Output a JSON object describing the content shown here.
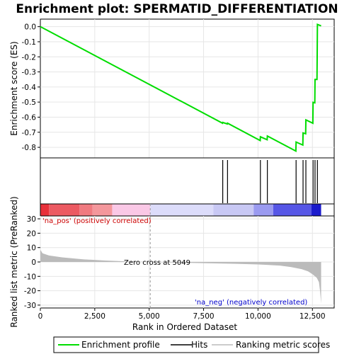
{
  "chart_data": [
    {
      "type": "line",
      "title": "Enrichment plot: SPERMATID_DIFFERENTIATION",
      "ylabel": "Enrichment score (ES)",
      "xlim": [
        0,
        13500
      ],
      "ylim": [
        -0.87,
        0.05
      ],
      "yticks": [
        "0.0",
        "-0.1",
        "-0.2",
        "-0.3",
        "-0.4",
        "-0.5",
        "-0.6",
        "-0.7",
        "-0.8"
      ],
      "ytick_values": [
        0.0,
        -0.1,
        -0.2,
        -0.3,
        -0.4,
        -0.5,
        -0.6,
        -0.7,
        -0.8
      ],
      "grid": true,
      "line_color": "#00dd00",
      "series": [
        {
          "name": "Enrichment profile",
          "x": [
            0,
            8370,
            8380,
            8590,
            8600,
            10100,
            10110,
            10420,
            10430,
            11740,
            11750,
            12060,
            12070,
            12190,
            12200,
            12520,
            12530,
            12610,
            12620,
            12710,
            12720,
            12730,
            12900
          ],
          "values": [
            0.0,
            -0.64,
            -0.635,
            -0.645,
            -0.64,
            -0.755,
            -0.73,
            -0.75,
            -0.725,
            -0.825,
            -0.765,
            -0.785,
            -0.705,
            -0.71,
            -0.618,
            -0.64,
            -0.502,
            -0.505,
            -0.35,
            -0.35,
            -0.18,
            0.015,
            0.005
          ]
        }
      ],
      "hits": [
        8380,
        8600,
        10110,
        10430,
        11750,
        12070,
        12200,
        12530,
        12620,
        12730
      ]
    },
    {
      "type": "area",
      "ylabel": "Ranked list metric (PreRanked)",
      "xlabel": "Rank in Ordered Dataset",
      "xlim": [
        0,
        13500
      ],
      "ylim": [
        -32,
        32
      ],
      "xticks": [
        "0",
        "2,500",
        "5,000",
        "7,500",
        "10,000",
        "12,500"
      ],
      "xtick_values": [
        0,
        2500,
        5000,
        7500,
        10000,
        12500
      ],
      "yticks": [
        "30",
        "20",
        "10",
        "0",
        "-10",
        "-20",
        "-30"
      ],
      "ytick_values": [
        30,
        20,
        10,
        0,
        -10,
        -20,
        -30
      ],
      "fill_color": "#bbbbbb",
      "series": [
        {
          "name": "Ranking metric scores",
          "x": [
            0,
            100,
            400,
            1000,
            2000,
            3000,
            4000,
            5049,
            6000,
            7000,
            8000,
            9000,
            10000,
            11000,
            11500,
            12000,
            12300,
            12500,
            12700,
            12800,
            12850,
            12900
          ],
          "values": [
            8.5,
            6,
            4.5,
            3.2,
            1.8,
            1.0,
            0.4,
            0,
            -0.4,
            -0.7,
            -1.0,
            -1.3,
            -1.7,
            -2.5,
            -3.5,
            -5,
            -6.5,
            -8.5,
            -11,
            -14,
            -20,
            -29
          ]
        }
      ],
      "annotations": {
        "pos": "'na_pos' (positively correlated)",
        "neg": "'na_neg' (negatively correlated)",
        "zero_cross": "Zero cross at 5049"
      },
      "zero_cross": 5049,
      "pos_color": "#cc0000",
      "neg_color": "#0000cc"
    }
  ],
  "legend": {
    "items": [
      {
        "label": "Enrichment profile",
        "color": "#00dd00"
      },
      {
        "label": "Hits",
        "color": "#000000"
      },
      {
        "label": "Ranking metric scores",
        "color": "#bbbbbb"
      }
    ],
    "placement": "bottom"
  },
  "heatmap_bar": {
    "segments": [
      {
        "from": 0,
        "to": 400,
        "color": "#e8303a"
      },
      {
        "from": 400,
        "to": 1800,
        "color": "#ec5a62"
      },
      {
        "from": 1800,
        "to": 2400,
        "color": "#f07a80"
      },
      {
        "from": 2400,
        "to": 3300,
        "color": "#f4979c"
      },
      {
        "from": 3300,
        "to": 5049,
        "color": "#fac8e6"
      },
      {
        "from": 5049,
        "to": 7950,
        "color": "#dcdcfa"
      },
      {
        "from": 7950,
        "to": 9800,
        "color": "#c8c8f4"
      },
      {
        "from": 9800,
        "to": 10700,
        "color": "#9a9af0"
      },
      {
        "from": 10700,
        "to": 12450,
        "color": "#5656e6"
      },
      {
        "from": 12450,
        "to": 12900,
        "color": "#1a1acc"
      }
    ]
  }
}
